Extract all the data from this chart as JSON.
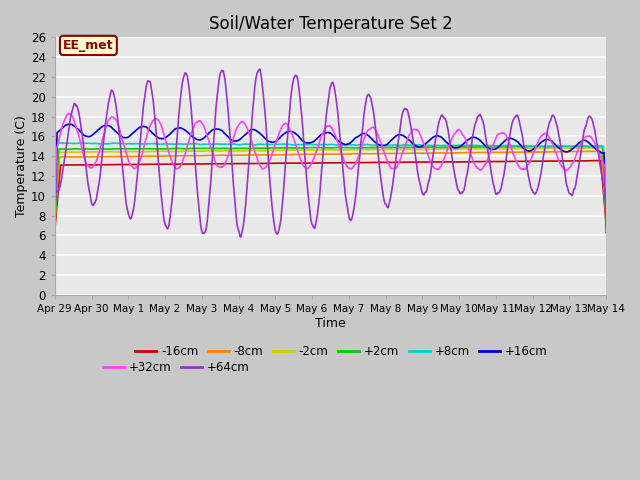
{
  "title": "Soil/Water Temperature Set 2",
  "xlabel": "Time",
  "ylabel": "Temperature (C)",
  "ylim": [
    0,
    26
  ],
  "yticks": [
    0,
    2,
    4,
    6,
    8,
    10,
    12,
    14,
    16,
    18,
    20,
    22,
    24,
    26
  ],
  "fig_bg": "#c8c8c8",
  "plot_bg": "#e8e8e8",
  "annotation_text": "EE_met",
  "annotation_bg": "#ffffcc",
  "annotation_border": "#8b0000",
  "series_colors": {
    "-16cm": "#cc0000",
    "-8cm": "#ff8800",
    "-2cm": "#cccc00",
    "+2cm": "#00cc00",
    "+8cm": "#00cccc",
    "+16cm": "#0000cc",
    "+32cm": "#ff44ff",
    "+64cm": "#9933cc"
  },
  "xtick_labels": [
    "Apr 29",
    "Apr 30",
    "May 1",
    "May 2",
    "May 3",
    "May 4",
    "May 5",
    "May 6",
    "May 7",
    "May 8",
    "May 9",
    "May 10",
    "May 11",
    "May 12",
    "May 13",
    "May 14"
  ],
  "legend_order": [
    "-16cm",
    "-8cm",
    "-2cm",
    "+2cm",
    "+8cm",
    "+16cm",
    "+32cm",
    "+64cm"
  ]
}
